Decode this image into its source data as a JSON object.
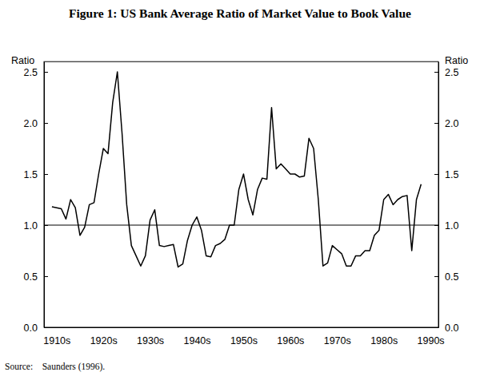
{
  "chart_data": {
    "type": "line",
    "title": "Figure 1: US Bank Average Ratio of Market Value to Book Value",
    "y_label": "Ratio",
    "y2_label": "Ratio",
    "source": "Source:    Saunders (1996).",
    "categories": [
      null,
      "1910s",
      null,
      null,
      null,
      null,
      null,
      null,
      null,
      null,
      null,
      "1920s",
      null,
      null,
      null,
      null,
      null,
      null,
      null,
      null,
      null,
      "1930s",
      null,
      null,
      null,
      null,
      null,
      null,
      null,
      null,
      null,
      "1940s",
      null,
      null,
      null,
      null,
      null,
      null,
      null,
      null,
      null,
      "1950s",
      null,
      null,
      null,
      null,
      null,
      null,
      null,
      null,
      null,
      "1960s",
      null,
      null,
      null,
      null,
      null,
      null,
      null,
      null,
      null,
      "1970s",
      null,
      null,
      null,
      null,
      null,
      null,
      null,
      null,
      null,
      "1980s",
      null,
      null,
      null,
      null,
      null,
      null,
      null,
      null,
      null,
      "1990s"
    ],
    "values": [
      1.18,
      1.17,
      1.16,
      1.06,
      1.25,
      1.17,
      0.9,
      0.98,
      1.2,
      1.22,
      1.5,
      1.75,
      1.7,
      2.2,
      2.5,
      1.9,
      1.2,
      0.8,
      0.7,
      0.6,
      0.7,
      1.05,
      1.15,
      0.8,
      0.79,
      0.8,
      0.81,
      0.59,
      0.62,
      0.85,
      1.0,
      1.08,
      0.95,
      0.7,
      0.69,
      0.8,
      0.82,
      0.86,
      1.0,
      1.0,
      1.35,
      1.5,
      1.25,
      1.1,
      1.35,
      1.46,
      1.45,
      2.15,
      1.55,
      1.6,
      1.55,
      1.5,
      1.5,
      1.47,
      1.48,
      1.85,
      1.75,
      1.25,
      0.6,
      0.63,
      0.8,
      0.76,
      0.72,
      0.6,
      0.6,
      0.7,
      0.7,
      0.75,
      0.75,
      0.9,
      0.95,
      1.25,
      1.3,
      1.2,
      1.25,
      1.28,
      1.29,
      0.75,
      1.25,
      1.4,
      null,
      null
    ],
    "color": "#000000",
    "ylim": [
      0,
      2.6
    ],
    "yticks": [
      {
        "value": 0,
        "label": "0.0"
      },
      {
        "value": 0.5,
        "label": "0.5"
      },
      {
        "value": 1,
        "label": "1.0"
      },
      {
        "value": 1.5,
        "label": "1.5"
      },
      {
        "value": 2,
        "label": "2.0"
      },
      {
        "value": 2.5,
        "label": "2.5"
      }
    ],
    "y2lim": [
      0,
      2.6
    ],
    "y2ticks": [
      {
        "value": 0,
        "label": "0.0"
      },
      {
        "value": 0.5,
        "label": "0.5"
      },
      {
        "value": 1,
        "label": "1.0"
      },
      {
        "value": 1.5,
        "label": "1.5"
      },
      {
        "value": 2,
        "label": "2.0"
      },
      {
        "value": 2.5,
        "label": "2.5"
      }
    ],
    "hline": 1
  }
}
